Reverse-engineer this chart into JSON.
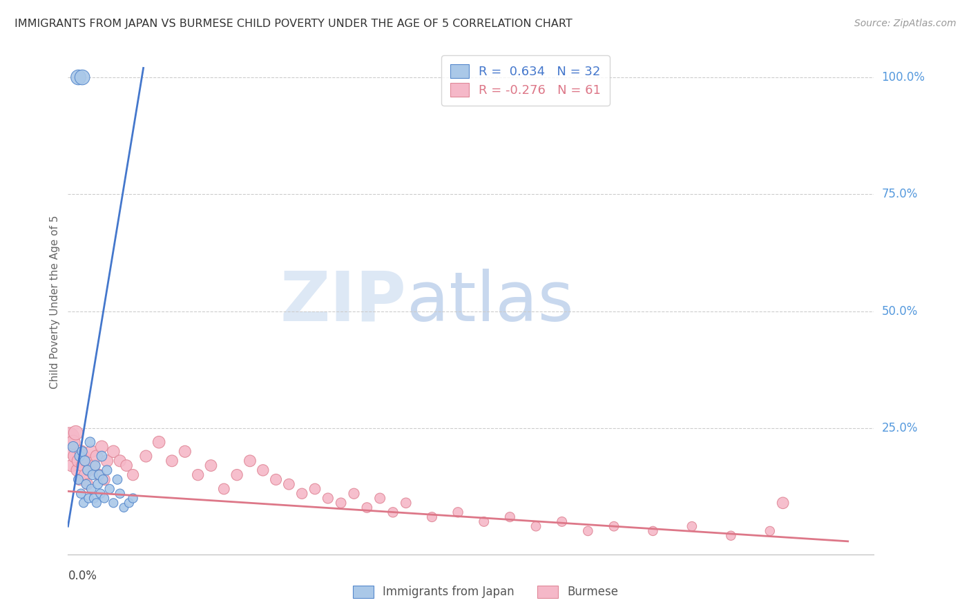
{
  "title": "IMMIGRANTS FROM JAPAN VS BURMESE CHILD POVERTY UNDER THE AGE OF 5 CORRELATION CHART",
  "source": "Source: ZipAtlas.com",
  "ylabel": "Child Poverty Under the Age of 5",
  "watermark_zip": "ZIP",
  "watermark_atlas": "atlas",
  "legend_blue_label": "Immigrants from Japan",
  "legend_pink_label": "Burmese",
  "blue_R": 0.634,
  "blue_N": 32,
  "pink_R": -0.276,
  "pink_N": 61,
  "blue_color": "#aac8e8",
  "pink_color": "#f5b8c8",
  "blue_edge_color": "#5588cc",
  "pink_edge_color": "#e08898",
  "blue_line_color": "#4477cc",
  "pink_line_color": "#dd7788",
  "right_label_color": "#5599dd",
  "xlim": [
    0.0,
    0.62
  ],
  "ylim": [
    -0.02,
    1.06
  ],
  "japan_x": [
    0.004,
    0.008,
    0.009,
    0.01,
    0.011,
    0.012,
    0.013,
    0.014,
    0.015,
    0.016,
    0.017,
    0.018,
    0.019,
    0.02,
    0.021,
    0.022,
    0.023,
    0.024,
    0.025,
    0.026,
    0.027,
    0.028,
    0.03,
    0.032,
    0.035,
    0.038,
    0.04,
    0.043,
    0.047,
    0.05,
    0.008,
    0.011
  ],
  "japan_y": [
    0.21,
    0.14,
    0.19,
    0.11,
    0.2,
    0.09,
    0.18,
    0.13,
    0.16,
    0.1,
    0.22,
    0.12,
    0.15,
    0.1,
    0.17,
    0.09,
    0.13,
    0.15,
    0.11,
    0.19,
    0.14,
    0.1,
    0.16,
    0.12,
    0.09,
    0.14,
    0.11,
    0.08,
    0.09,
    0.1,
    1.0,
    1.0
  ],
  "japan_sizes": [
    55,
    45,
    50,
    42,
    48,
    40,
    50,
    44,
    46,
    42,
    50,
    44,
    46,
    42,
    48,
    40,
    44,
    46,
    42,
    50,
    44,
    40,
    46,
    42,
    40,
    44,
    42,
    38,
    40,
    42,
    110,
    110
  ],
  "burmese_x": [
    0.001,
    0.002,
    0.003,
    0.004,
    0.005,
    0.006,
    0.007,
    0.008,
    0.009,
    0.01,
    0.011,
    0.012,
    0.013,
    0.014,
    0.015,
    0.016,
    0.018,
    0.02,
    0.022,
    0.024,
    0.026,
    0.028,
    0.03,
    0.035,
    0.04,
    0.045,
    0.05,
    0.06,
    0.07,
    0.08,
    0.09,
    0.1,
    0.11,
    0.12,
    0.13,
    0.14,
    0.15,
    0.16,
    0.17,
    0.18,
    0.19,
    0.2,
    0.21,
    0.22,
    0.23,
    0.24,
    0.25,
    0.26,
    0.28,
    0.3,
    0.32,
    0.34,
    0.36,
    0.38,
    0.4,
    0.42,
    0.45,
    0.48,
    0.51,
    0.54,
    0.55
  ],
  "burmese_y": [
    0.23,
    0.2,
    0.17,
    0.22,
    0.19,
    0.24,
    0.16,
    0.18,
    0.14,
    0.2,
    0.17,
    0.19,
    0.15,
    0.18,
    0.13,
    0.16,
    0.2,
    0.17,
    0.19,
    0.15,
    0.21,
    0.14,
    0.18,
    0.2,
    0.18,
    0.17,
    0.15,
    0.19,
    0.22,
    0.18,
    0.2,
    0.15,
    0.17,
    0.12,
    0.15,
    0.18,
    0.16,
    0.14,
    0.13,
    0.11,
    0.12,
    0.1,
    0.09,
    0.11,
    0.08,
    0.1,
    0.07,
    0.09,
    0.06,
    0.07,
    0.05,
    0.06,
    0.04,
    0.05,
    0.03,
    0.04,
    0.03,
    0.04,
    0.02,
    0.03,
    0.09
  ],
  "burmese_sizes": [
    200,
    90,
    75,
    95,
    80,
    100,
    70,
    80,
    65,
    80,
    70,
    78,
    65,
    72,
    62,
    68,
    75,
    70,
    72,
    65,
    75,
    62,
    70,
    72,
    68,
    65,
    62,
    68,
    72,
    66,
    68,
    62,
    65,
    58,
    62,
    66,
    63,
    60,
    58,
    55,
    57,
    53,
    50,
    54,
    50,
    52,
    48,
    50,
    46,
    48,
    45,
    46,
    44,
    45,
    43,
    44,
    42,
    43,
    42,
    42,
    65
  ],
  "blue_line_x": [
    0.0,
    0.058
  ],
  "blue_line_y": [
    0.04,
    1.02
  ],
  "pink_line_x": [
    0.0,
    0.6
  ],
  "pink_line_y": [
    0.115,
    0.008
  ]
}
